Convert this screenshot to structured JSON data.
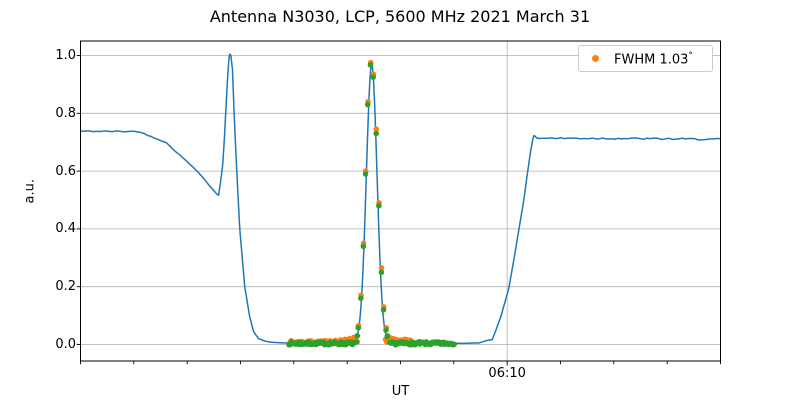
{
  "title": "Antenna N3030, LCP, 5600 MHz 2021 March 31",
  "axes": {
    "xlabel": "UT",
    "ylabel": "a.u.",
    "x_tick_label": "06:10",
    "ytick_labels": [
      "0.0",
      "0.2",
      "0.4",
      "0.6",
      "0.8",
      "1.0"
    ]
  },
  "legend": {
    "label": "FWHM 1.03",
    "degree_symbol": "°",
    "marker_color": "#ff7f0e"
  },
  "chart_data": {
    "type": "line",
    "title": "Antenna N3030, LCP, 5600 MHz 2021 March 31",
    "xlabel": "UT",
    "ylabel": "a.u.",
    "grid": true,
    "legend": {
      "label": "FWHM 1.03°",
      "position": "upper right"
    },
    "colors": {
      "signal": "#1f77b4",
      "scan_points": "#ff7f0e",
      "fit_points": "#2ca02c",
      "grid": "#b0b0b0",
      "frame": "#000000"
    },
    "ylim": [
      -0.057,
      1.05
    ],
    "yticks": [
      0.0,
      0.2,
      0.4,
      0.6,
      0.8,
      1.0
    ],
    "x_axis": {
      "unit": "time UT",
      "span_minutes": 60,
      "minor_tick_interval_minutes": 5,
      "labeled_tick": "06:10",
      "labeled_tick_minutes_from_left": 40
    },
    "series": [
      {
        "name": "antenna-signal",
        "type": "line",
        "color": "#1f77b4",
        "line_width": 1.5,
        "control_points": [
          [
            0,
            0.738
          ],
          [
            5.44,
            0.737
          ],
          [
            7.97,
            0.7
          ],
          [
            10.97,
            0.6
          ],
          [
            12.2,
            0.545
          ],
          [
            12.94,
            0.515
          ],
          [
            13.1,
            0.555
          ],
          [
            13.33,
            0.62
          ],
          [
            13.5,
            0.72
          ],
          [
            13.61,
            0.8
          ],
          [
            13.8,
            0.93
          ],
          [
            13.93,
            0.995
          ],
          [
            14.0,
            1.005
          ],
          [
            14.1,
            1.0
          ],
          [
            14.25,
            0.95
          ],
          [
            14.4,
            0.8
          ],
          [
            14.65,
            0.6
          ],
          [
            14.93,
            0.4
          ],
          [
            15.4,
            0.2
          ],
          [
            15.84,
            0.1
          ],
          [
            16.22,
            0.045
          ],
          [
            16.69,
            0.02
          ],
          [
            17.44,
            0.01
          ],
          [
            18.75,
            0.006
          ],
          [
            19.69,
            0.005
          ],
          [
            25.0,
            0.005
          ],
          [
            29.5,
            0.005
          ],
          [
            35.2,
            0.004
          ],
          [
            37.3,
            0.005
          ],
          [
            38.2,
            0.015
          ],
          [
            38.6,
            0.017
          ],
          [
            38.95,
            0.05
          ],
          [
            39.4,
            0.096
          ],
          [
            39.85,
            0.154
          ],
          [
            40.15,
            0.194
          ],
          [
            40.62,
            0.292
          ],
          [
            41.09,
            0.396
          ],
          [
            41.56,
            0.5
          ],
          [
            41.88,
            0.587
          ],
          [
            42.19,
            0.667
          ],
          [
            42.4,
            0.71
          ],
          [
            42.52,
            0.724
          ],
          [
            42.8,
            0.714
          ],
          [
            50.0,
            0.713
          ],
          [
            60.0,
            0.71
          ]
        ],
        "gaussian": {
          "center": 27.3,
          "sigma": 0.5,
          "amplitude": 0.963
        },
        "noise_segments": [
          {
            "from": 0,
            "to": 5.44,
            "amp": 0.002
          },
          {
            "from": 5.44,
            "to": 12.9,
            "amp": 0.0015
          },
          {
            "from": 16.8,
            "to": 38.5,
            "amp": 0.0006
          },
          {
            "from": 42.9,
            "to": 60,
            "amp": 0.003
          }
        ]
      },
      {
        "name": "scan-samples",
        "type": "scatter",
        "color": "#ff7f0e",
        "marker_radius": 2.8,
        "points": [
          [
            22.9,
            0.012
          ],
          [
            23.4,
            0.013
          ],
          [
            23.9,
            0.014
          ],
          [
            24.4,
            0.016
          ],
          [
            24.8,
            0.018
          ],
          [
            25.2,
            0.02
          ],
          [
            25.6,
            0.024
          ],
          [
            25.9,
            0.028
          ],
          [
            26.06,
            0.065
          ],
          [
            26.3,
            0.17
          ],
          [
            26.54,
            0.35
          ],
          [
            26.74,
            0.6
          ],
          [
            26.95,
            0.84
          ],
          [
            27.21,
            0.975
          ],
          [
            27.46,
            0.935
          ],
          [
            27.74,
            0.745
          ],
          [
            27.99,
            0.49
          ],
          [
            28.23,
            0.265
          ],
          [
            28.43,
            0.13
          ],
          [
            28.66,
            0.058
          ],
          [
            28.8,
            0.03
          ],
          [
            29.0,
            0.024
          ],
          [
            29.3,
            0.02
          ],
          [
            29.7,
            0.016
          ],
          [
            30.2,
            0.013
          ],
          [
            30.7,
            0.011
          ]
        ],
        "bands": [
          {
            "from": 19.55,
            "to": 26.0,
            "value": 0.008,
            "step": 0.1,
            "jitter": 0.005
          },
          {
            "from": 28.6,
            "to": 30.9,
            "value": 0.013,
            "step": 0.1,
            "jitter": 0.005
          }
        ]
      },
      {
        "name": "fit-samples",
        "type": "scatter",
        "color": "#2ca02c",
        "marker_radius": 2.8,
        "points": [
          [
            25.95,
            0.03
          ],
          [
            26.04,
            0.058
          ],
          [
            26.28,
            0.16
          ],
          [
            26.52,
            0.34
          ],
          [
            26.72,
            0.59
          ],
          [
            26.93,
            0.83
          ],
          [
            27.19,
            0.967
          ],
          [
            27.44,
            0.925
          ],
          [
            27.72,
            0.73
          ],
          [
            27.97,
            0.48
          ],
          [
            28.21,
            0.25
          ],
          [
            28.41,
            0.12
          ],
          [
            28.64,
            0.05
          ],
          [
            28.76,
            0.028
          ]
        ],
        "bands": [
          {
            "from": 19.55,
            "to": 25.9,
            "value": 0.004,
            "step": 0.09,
            "jitter": 0.005
          },
          {
            "from": 29.0,
            "to": 35.1,
            "value": 0.004,
            "step": 0.09,
            "jitter": 0.005
          }
        ]
      }
    ]
  }
}
